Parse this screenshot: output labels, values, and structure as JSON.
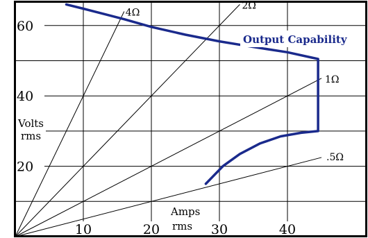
{
  "chart_data": {
    "type": "line",
    "title": "",
    "xlabel": "Amps rms",
    "ylabel": "Volts rms",
    "xlabel_lines": [
      "Amps",
      "rms"
    ],
    "ylabel_lines": [
      "Volts",
      "rms"
    ],
    "xlim": [
      0,
      50
    ],
    "ylim": [
      0,
      66
    ],
    "x_ticks": [
      10,
      20,
      30,
      40
    ],
    "y_ticks": [
      20,
      40,
      60
    ],
    "x_gridlines": [
      10,
      20,
      30,
      40
    ],
    "y_gridlines": [
      10,
      20,
      30,
      40,
      50,
      60
    ],
    "grid": true,
    "load_lines": [
      {
        "label": "4Ω",
        "ohms": 4,
        "end": [
          16,
          64
        ]
      },
      {
        "label": "2Ω",
        "ohms": 2,
        "end": [
          33,
          66
        ]
      },
      {
        "label": "1Ω",
        "ohms": 1,
        "end": [
          45,
          45
        ]
      },
      {
        "label": ".5Ω",
        "ohms": 0.5,
        "end": [
          45,
          22.5
        ]
      }
    ],
    "series": [
      {
        "name": "Output Capability",
        "x": [
          7.5,
          10,
          13,
          16,
          20,
          25,
          30,
          35,
          40,
          44.5,
          44.5,
          44.5,
          42,
          39,
          36,
          33,
          30.5,
          28
        ],
        "y": [
          66,
          64.8,
          63.3,
          61.8,
          59.6,
          57.4,
          55.5,
          53.9,
          52.4,
          50.5,
          40,
          30,
          29.5,
          28.5,
          26.5,
          23.5,
          20,
          15
        ]
      }
    ],
    "colors": {
      "curve": "#1a2a8c",
      "grid": "#000000",
      "background": "#ffffff"
    }
  }
}
